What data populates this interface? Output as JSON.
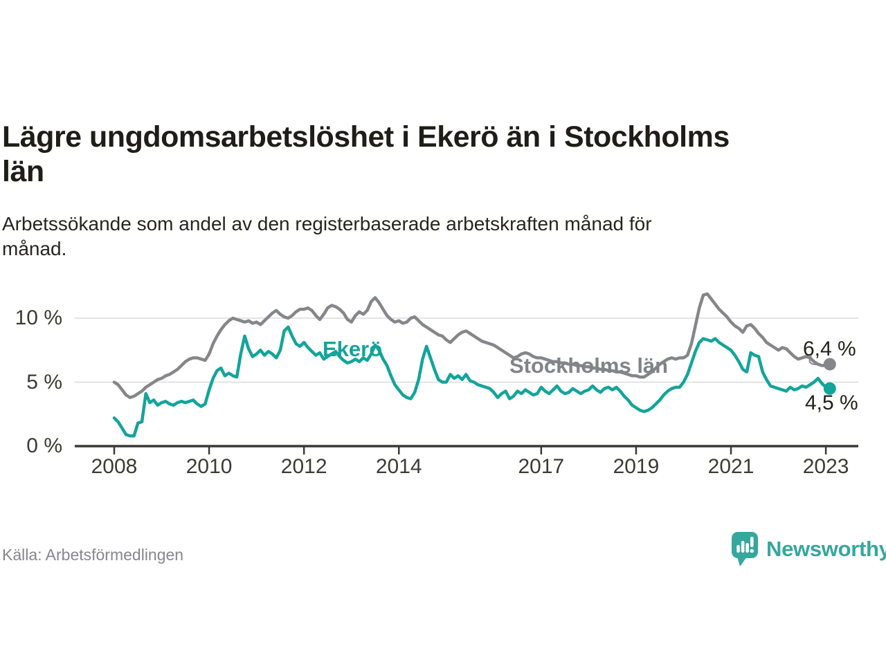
{
  "header": {
    "title_lines": [
      "Lägre ungdomsarbetslöshet i Ekerö än i Stockholms",
      "län"
    ],
    "subtitle_lines": [
      "Arbetssökande som andel av den registerbaserade arbetskraften månad för",
      "månad."
    ]
  },
  "footer": {
    "source": "Källa: Arbetsförmedlingen",
    "brand": "Newsworthy"
  },
  "colors": {
    "ekero": "#13A49B",
    "stockholm": "#85868A",
    "axis": "#393935",
    "grid": "#DBDBD9",
    "text": "#22211C",
    "muted": "#87878B",
    "brand": "#35A79D"
  },
  "chart_data": {
    "type": "line",
    "x_unit": "month",
    "x_range": [
      "2008-01",
      "2023-02"
    ],
    "ylim": [
      0,
      12
    ],
    "grid": "horizontal",
    "x_ticks": [
      "2008",
      "2010",
      "2012",
      "2014",
      "2017",
      "2019",
      "2021",
      "2023"
    ],
    "y_ticks": [
      {
        "label": "0 %",
        "value": 0
      },
      {
        "label": "5 %",
        "value": 5
      },
      {
        "label": "10 %",
        "value": 10
      }
    ],
    "series": [
      {
        "name": "Ekerö",
        "color": "#13A49B",
        "start": "2008-01",
        "interval": "monthly",
        "end_value": 4.5,
        "end_label": "4,5 %",
        "values": [
          2.2,
          1.9,
          1.4,
          0.9,
          0.8,
          0.8,
          1.8,
          1.9,
          4.1,
          3.4,
          3.6,
          3.2,
          3.4,
          3.5,
          3.3,
          3.2,
          3.4,
          3.5,
          3.4,
          3.5,
          3.6,
          3.3,
          3.1,
          3.3,
          4.4,
          5.3,
          5.9,
          6.1,
          5.5,
          5.7,
          5.5,
          5.4,
          7.2,
          8.6,
          7.6,
          7.0,
          7.2,
          7.5,
          7.1,
          7.4,
          7.2,
          6.9,
          7.5,
          9.0,
          9.3,
          8.6,
          8.0,
          7.8,
          8.1,
          7.7,
          7.4,
          7.1,
          7.3,
          6.8,
          7.0,
          7.2,
          7.4,
          7.0,
          6.7,
          6.5,
          6.6,
          6.8,
          6.6,
          6.9,
          6.7,
          7.2,
          7.9,
          7.5,
          6.8,
          6.3,
          5.5,
          4.8,
          4.4,
          4.0,
          3.8,
          3.7,
          4.2,
          5.2,
          6.8,
          7.8,
          6.9,
          6.0,
          5.2,
          5.0,
          5.0,
          5.6,
          5.3,
          5.5,
          5.2,
          5.6,
          5.1,
          5.0,
          4.8,
          4.7,
          4.6,
          4.5,
          4.2,
          3.8,
          4.1,
          4.3,
          3.7,
          3.9,
          4.3,
          4.1,
          4.4,
          4.2,
          4.0,
          4.1,
          4.6,
          4.3,
          4.1,
          4.4,
          4.7,
          4.3,
          4.1,
          4.2,
          4.5,
          4.3,
          4.1,
          4.3,
          4.4,
          4.7,
          4.4,
          4.2,
          4.5,
          4.6,
          4.4,
          4.6,
          4.3,
          3.9,
          3.6,
          3.2,
          3.0,
          2.8,
          2.7,
          2.8,
          3.0,
          3.3,
          3.6,
          4.0,
          4.3,
          4.5,
          4.6,
          4.6,
          5.0,
          5.6,
          6.5,
          7.4,
          8.1,
          8.4,
          8.3,
          8.2,
          8.4,
          8.1,
          7.9,
          7.7,
          7.5,
          7.1,
          6.6,
          6.0,
          5.8,
          7.3,
          7.1,
          7.0,
          5.8,
          5.2,
          4.7,
          4.6,
          4.5,
          4.4,
          4.3,
          4.6,
          4.4,
          4.5,
          4.7,
          4.6,
          4.8,
          5.0,
          5.3,
          4.9,
          4.6,
          4.5
        ]
      },
      {
        "name": "Stockholms län",
        "color": "#85868A",
        "start": "2008-01",
        "interval": "monthly",
        "end_value": 6.4,
        "end_label": "6,4 %",
        "values": [
          5.0,
          4.8,
          4.4,
          4.0,
          3.8,
          3.9,
          4.1,
          4.3,
          4.6,
          4.8,
          5.0,
          5.2,
          5.3,
          5.5,
          5.6,
          5.8,
          6.0,
          6.3,
          6.6,
          6.8,
          6.9,
          6.9,
          6.8,
          6.7,
          7.2,
          8.0,
          8.6,
          9.1,
          9.5,
          9.8,
          10.0,
          9.9,
          9.8,
          9.7,
          9.8,
          9.6,
          9.7,
          9.5,
          9.8,
          10.1,
          10.4,
          10.6,
          10.3,
          10.1,
          10.0,
          10.2,
          10.5,
          10.7,
          10.7,
          10.8,
          10.6,
          10.2,
          9.9,
          10.3,
          10.8,
          11.0,
          10.9,
          10.7,
          10.4,
          9.9,
          9.7,
          10.2,
          10.5,
          10.3,
          10.6,
          11.3,
          11.6,
          11.2,
          10.7,
          10.2,
          9.9,
          9.7,
          9.8,
          9.6,
          9.7,
          10.0,
          10.1,
          9.8,
          9.5,
          9.3,
          9.1,
          8.9,
          8.7,
          8.6,
          8.3,
          8.1,
          8.4,
          8.7,
          8.9,
          9.0,
          8.8,
          8.6,
          8.4,
          8.2,
          8.1,
          8.0,
          7.9,
          7.7,
          7.5,
          7.3,
          7.1,
          6.9,
          7.0,
          7.2,
          7.3,
          7.2,
          7.0,
          6.9,
          6.9,
          6.8,
          6.7,
          6.6,
          6.6,
          6.5,
          6.5,
          6.4,
          6.4,
          6.3,
          6.3,
          6.2,
          6.2,
          6.1,
          6.1,
          6.0,
          6.0,
          5.9,
          5.9,
          5.8,
          5.8,
          5.7,
          5.6,
          5.5,
          5.5,
          5.4,
          5.4,
          5.6,
          5.8,
          6.1,
          6.4,
          6.6,
          6.8,
          6.9,
          6.8,
          6.9,
          6.9,
          7.1,
          8.0,
          9.4,
          10.8,
          11.8,
          11.9,
          11.5,
          11.1,
          10.7,
          10.4,
          10.1,
          9.7,
          9.4,
          9.2,
          8.9,
          9.4,
          9.5,
          9.2,
          8.8,
          8.5,
          8.1,
          7.9,
          7.7,
          7.5,
          7.7,
          7.6,
          7.3,
          7.0,
          6.8,
          6.9,
          7.0,
          6.9,
          6.6,
          6.4,
          6.3,
          6.3,
          6.4
        ]
      }
    ]
  }
}
